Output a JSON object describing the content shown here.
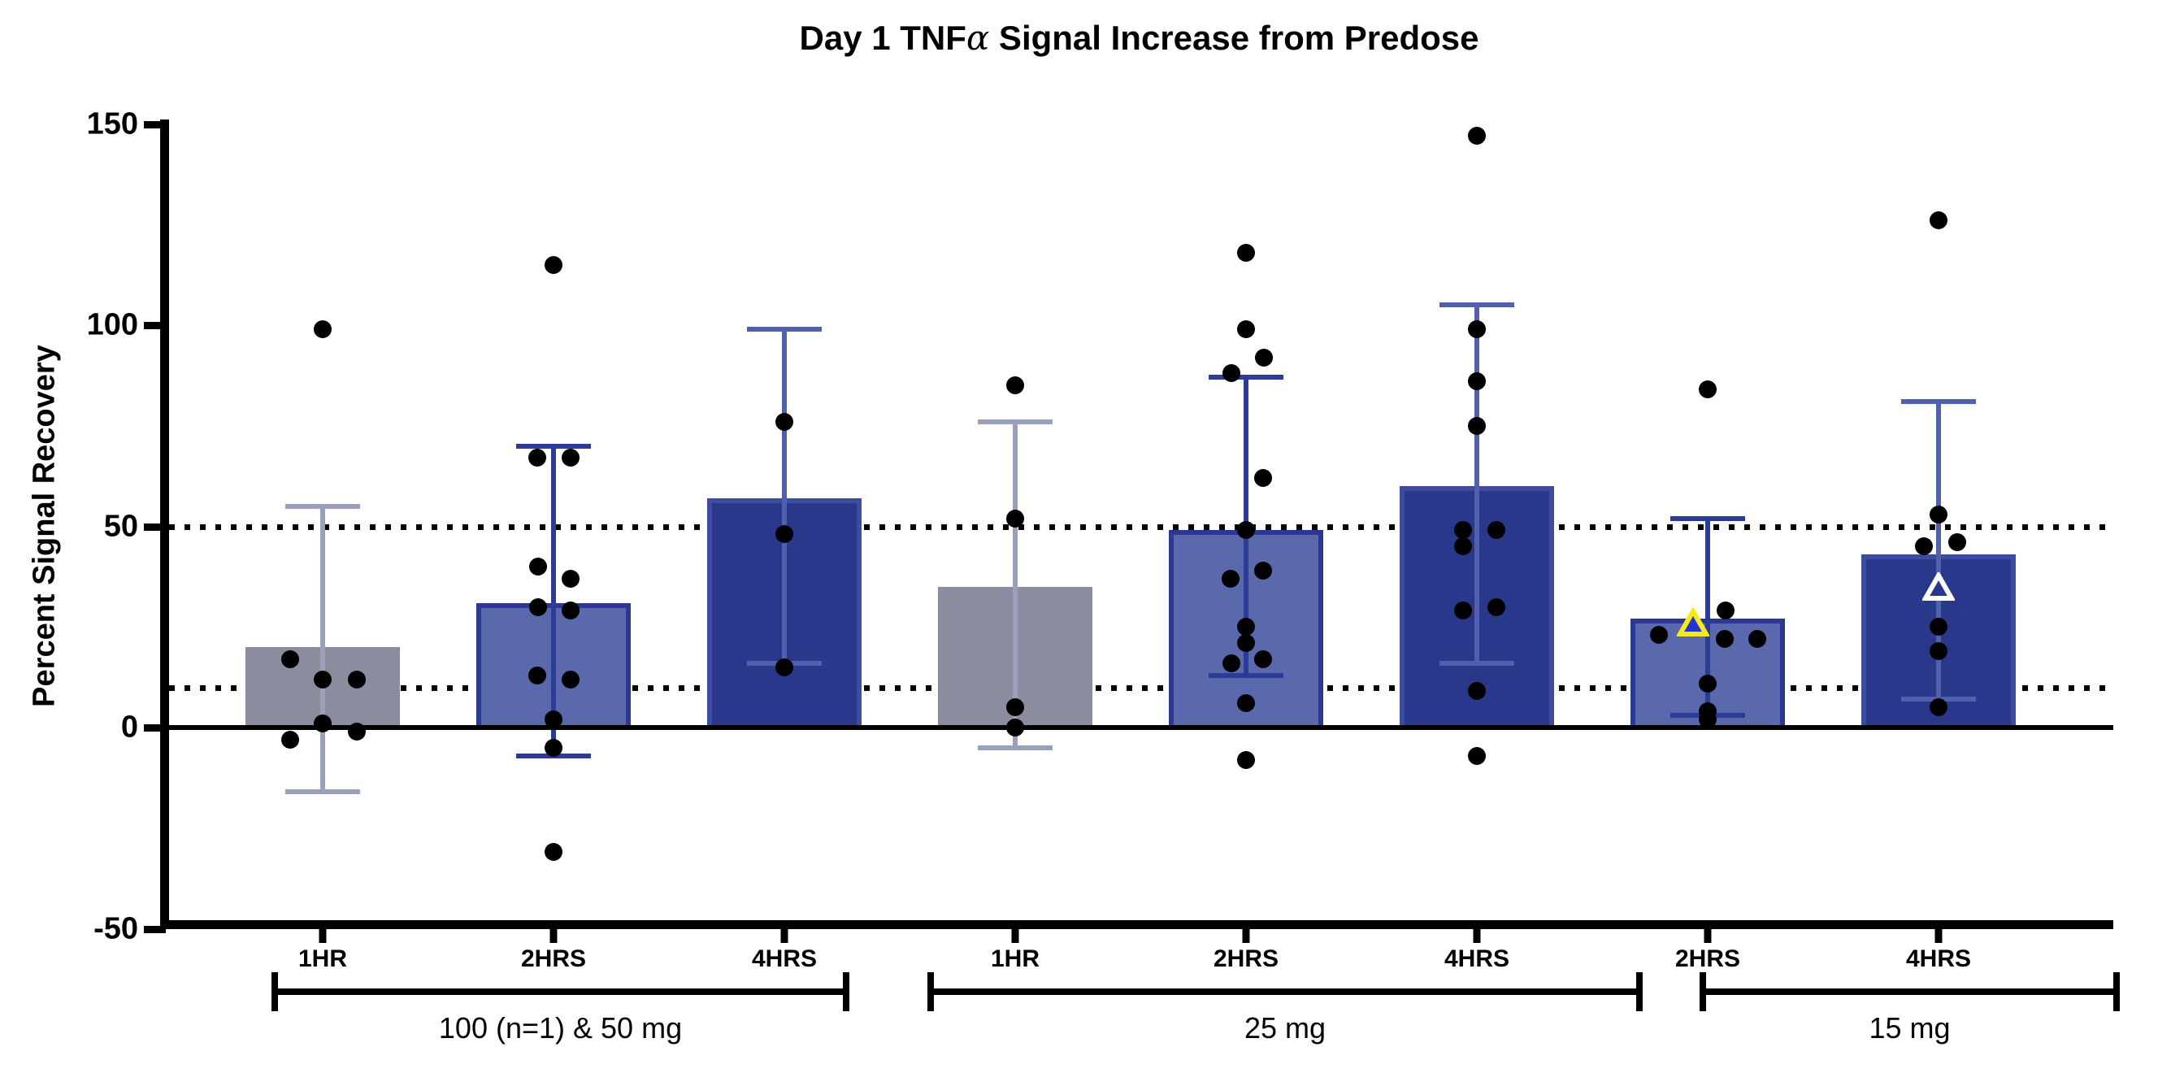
{
  "chart_data": {
    "type": "bar",
    "title": "Day 1 TNFα Signal Increase from Predose",
    "title_parts": {
      "prefix": "Day 1 TNF",
      "alpha": "α",
      "suffix": " Signal Increase from Predose"
    },
    "ylabel": "Percent Signal Recovery",
    "xlabel": "",
    "ylim": [
      -50,
      150
    ],
    "yticks": [
      150,
      100,
      50,
      0,
      -50
    ],
    "reference_lines": [
      50,
      10
    ],
    "grid": false,
    "legend": "none",
    "colors": {
      "background": "#ffffff",
      "axis": "#000000",
      "dot": "#000000",
      "gray_fill": "#8b8c9e",
      "medium_fill": "#5a69ac",
      "medium_border": "#2b3a90",
      "dark_fill": "#2a388c",
      "dark_border": "#3d4c9e",
      "err_gray": "#9ba0ba",
      "err_medium": "#2c3c96",
      "err_dark": "#5060ac",
      "triangle_yellow_stroke": "#f6eb16",
      "triangle_yellow_fill": "#2434d2",
      "triangle_white_stroke": "#ffffff"
    },
    "groups": [
      {
        "label": "100 (n=1) & 50 mg",
        "bars": [
          {
            "tick": "1HR",
            "style": "gray",
            "mean": 20,
            "err_high": 55,
            "err_low": -16,
            "points": [
              {
                "v": 99,
                "dx": 0
              },
              {
                "v": 17,
                "dx": -40
              },
              {
                "v": 12,
                "dx": 0
              },
              {
                "v": 12,
                "dx": 42
              },
              {
                "v": 1,
                "dx": 0
              },
              {
                "v": -1,
                "dx": 42
              },
              {
                "v": -3,
                "dx": -40
              }
            ]
          },
          {
            "tick": "2HRS",
            "style": "medium",
            "mean": 31,
            "err_high": 70,
            "err_low": -7,
            "points": [
              {
                "v": 115,
                "dx": 0
              },
              {
                "v": 67,
                "dx": -20
              },
              {
                "v": 67,
                "dx": 21
              },
              {
                "v": 40,
                "dx": -19
              },
              {
                "v": 37,
                "dx": 21
              },
              {
                "v": 30,
                "dx": -19
              },
              {
                "v": 29,
                "dx": 21
              },
              {
                "v": 13,
                "dx": -20
              },
              {
                "v": 12,
                "dx": 21
              },
              {
                "v": 2,
                "dx": 0
              },
              {
                "v": -5,
                "dx": 0
              },
              {
                "v": -31,
                "dx": 0
              }
            ]
          },
          {
            "tick": "4HRS",
            "style": "dark",
            "mean": 57,
            "err_high": 99,
            "err_low": 16,
            "points": [
              {
                "v": 76,
                "dx": 0
              },
              {
                "v": 48,
                "dx": 0
              },
              {
                "v": 15,
                "dx": 0
              }
            ]
          }
        ]
      },
      {
        "label": "25 mg",
        "bars": [
          {
            "tick": "1HR",
            "style": "gray",
            "mean": 35,
            "err_high": 76,
            "err_low": -5,
            "points": [
              {
                "v": 85,
                "dx": 0
              },
              {
                "v": 52,
                "dx": 0
              },
              {
                "v": 5,
                "dx": 0
              },
              {
                "v": 0,
                "dx": 0
              }
            ]
          },
          {
            "tick": "2HRS",
            "style": "medium",
            "mean": 49,
            "err_high": 87,
            "err_low": 13,
            "points": [
              {
                "v": 118,
                "dx": 0
              },
              {
                "v": 99,
                "dx": 0
              },
              {
                "v": 92,
                "dx": 22
              },
              {
                "v": 88,
                "dx": -18
              },
              {
                "v": 62,
                "dx": 21
              },
              {
                "v": 49,
                "dx": 0
              },
              {
                "v": 39,
                "dx": 21
              },
              {
                "v": 37,
                "dx": -19
              },
              {
                "v": 25,
                "dx": 0
              },
              {
                "v": 21,
                "dx": 0
              },
              {
                "v": 17,
                "dx": 21
              },
              {
                "v": 16,
                "dx": -18
              },
              {
                "v": 6,
                "dx": 0
              },
              {
                "v": -8,
                "dx": 0
              }
            ]
          },
          {
            "tick": "4HRS",
            "style": "dark",
            "mean": 60,
            "err_high": 105,
            "err_low": 16,
            "points": [
              {
                "v": 147,
                "dx": 0
              },
              {
                "v": 99,
                "dx": 0
              },
              {
                "v": 86,
                "dx": 0
              },
              {
                "v": 75,
                "dx": 0
              },
              {
                "v": 49,
                "dx": -17
              },
              {
                "v": 49,
                "dx": 24
              },
              {
                "v": 45,
                "dx": -17
              },
              {
                "v": 30,
                "dx": 24
              },
              {
                "v": 29,
                "dx": -17
              },
              {
                "v": 9,
                "dx": 0
              },
              {
                "v": -7,
                "dx": 0
              }
            ]
          }
        ]
      },
      {
        "label": "15 mg",
        "bars": [
          {
            "tick": "2HRS",
            "style": "medium",
            "mean": 27,
            "err_high": 52,
            "err_low": 3,
            "points": [
              {
                "v": 84,
                "dx": 0
              },
              {
                "v": 29,
                "dx": 22
              },
              {
                "v": 26,
                "dx": -18,
                "marker": "triangle-yellow"
              },
              {
                "v": 23,
                "dx": -60
              },
              {
                "v": 22,
                "dx": 21
              },
              {
                "v": 22,
                "dx": 61
              },
              {
                "v": 11,
                "dx": 0
              },
              {
                "v": 4,
                "dx": 0
              },
              {
                "v": 2,
                "dx": 0
              }
            ]
          },
          {
            "tick": "4HRS",
            "style": "dark",
            "mean": 43,
            "err_high": 81,
            "err_low": 7,
            "points": [
              {
                "v": 126,
                "dx": 0
              },
              {
                "v": 53,
                "dx": 0
              },
              {
                "v": 46,
                "dx": 23
              },
              {
                "v": 45,
                "dx": -18
              },
              {
                "v": 35,
                "dx": 0,
                "marker": "triangle-white"
              },
              {
                "v": 25,
                "dx": 0
              },
              {
                "v": 19,
                "dx": 0
              },
              {
                "v": 5,
                "dx": 0
              }
            ]
          }
        ]
      }
    ]
  }
}
